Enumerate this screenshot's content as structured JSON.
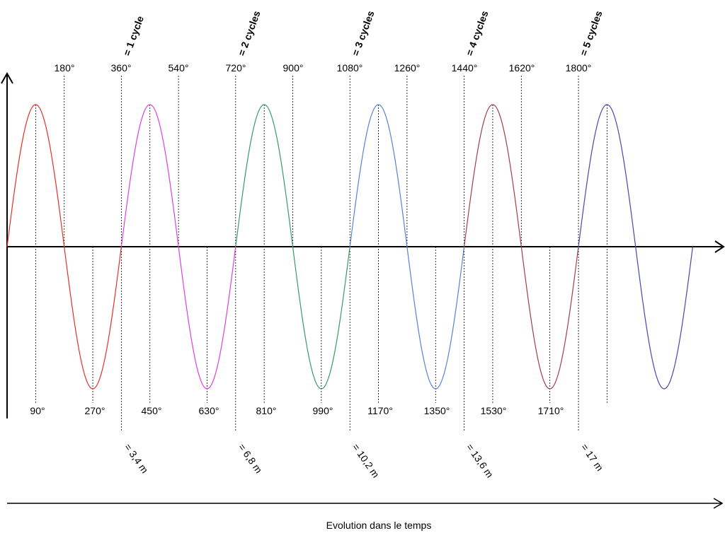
{
  "diagram": {
    "top_angles": [
      "180°",
      "360°",
      "540°",
      "720°",
      "900°",
      "1080°",
      "1260°",
      "1440°",
      "1620°",
      "1800°"
    ],
    "bottom_angles": [
      "90°",
      "270°",
      "450°",
      "630°",
      "810°",
      "990°",
      "1170°",
      "1350°",
      "1530°",
      "1710°"
    ],
    "cycle_labels": [
      "= 1 cycle",
      "= 2 cycles",
      "= 3 cycles",
      "= 4 cycles",
      "= 5 cycles"
    ],
    "distance_labels": [
      "= 3,4 m",
      "= 6,8 m",
      "= 10,2 m",
      "= 13,6 m",
      "= 17 m"
    ],
    "time_axis_label": "Evolution dans le temps",
    "cycle_colors": [
      "#e8302a",
      "#e040e0",
      "#3a9a6a",
      "#5a82d8",
      "#a0404a",
      "#4848b0"
    ]
  }
}
